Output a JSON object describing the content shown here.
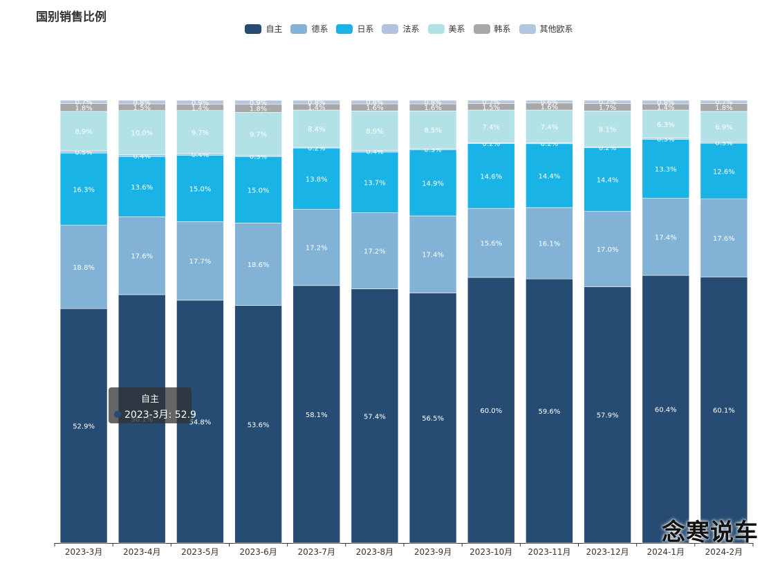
{
  "chart_data": {
    "type": "bar",
    "stacked": true,
    "title": "国别销售比例",
    "legend_position": "top-center",
    "categories": [
      "2023-3月",
      "2023-4月",
      "2023-5月",
      "2023-6月",
      "2023-7月",
      "2023-8月",
      "2023-9月",
      "2023-10月",
      "2023-11月",
      "2023-12月",
      "2024-1月",
      "2024-2月"
    ],
    "ylim": [
      0,
      100
    ],
    "series": [
      {
        "name": "自主",
        "color": "#274c73",
        "values": [
          52.9,
          56.1,
          54.8,
          53.6,
          58.1,
          57.4,
          56.5,
          60.0,
          59.6,
          57.9,
          60.4,
          60.1
        ]
      },
      {
        "name": "德系",
        "color": "#82b3d6",
        "values": [
          18.8,
          17.6,
          17.7,
          18.6,
          17.2,
          17.2,
          17.4,
          15.6,
          16.1,
          17.0,
          17.4,
          17.6
        ]
      },
      {
        "name": "日系",
        "color": "#1ab3e6",
        "values": [
          16.3,
          13.6,
          15.0,
          15.0,
          13.8,
          13.7,
          14.9,
          14.6,
          14.4,
          14.4,
          13.3,
          12.6
        ]
      },
      {
        "name": "法系",
        "color": "#b3c3df",
        "values": [
          0.5,
          0.4,
          0.4,
          0.3,
          0.2,
          0.4,
          0.3,
          0.2,
          0.2,
          0.2,
          0.3,
          0.3
        ]
      },
      {
        "name": "美系",
        "color": "#b2e1e6",
        "values": [
          8.9,
          10.0,
          9.7,
          9.7,
          8.4,
          8.9,
          8.5,
          7.4,
          7.4,
          8.1,
          6.3,
          6.9
        ]
      },
      {
        "name": "韩系",
        "color": "#a8a8a8",
        "values": [
          1.8,
          1.5,
          1.4,
          1.8,
          1.4,
          1.6,
          1.6,
          1.5,
          1.6,
          1.7,
          1.4,
          1.8
        ]
      },
      {
        "name": "其他欧系",
        "color": "#b3c6e0",
        "values": [
          0.7,
          0.8,
          0.9,
          0.9,
          0.8,
          0.8,
          0.8,
          0.7,
          0.6,
          0.7,
          0.8,
          0.7
        ]
      }
    ]
  },
  "tooltip": {
    "title": "自主",
    "text": "2023-3月: 52.9",
    "dot_color": "#274c73"
  },
  "watermark": "念寒说车"
}
